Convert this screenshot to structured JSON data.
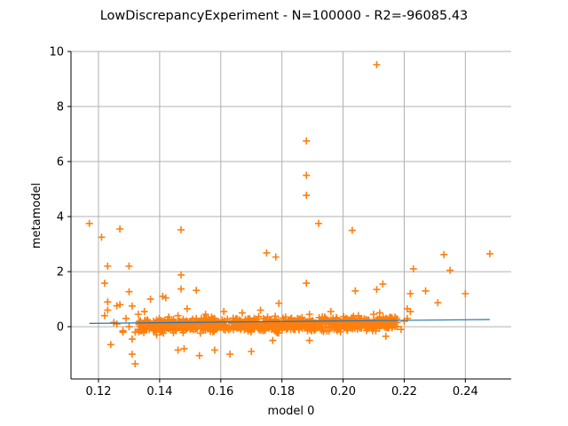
{
  "chart_data": {
    "type": "scatter",
    "title": "LowDiscrepancyExperiment - N=100000 - R2=-96085.43",
    "xlabel": "model 0",
    "ylabel": "metamodel",
    "xlim": [
      0.111,
      0.255
    ],
    "ylim": [
      -1.9,
      10.0
    ],
    "xticks": [
      0.12,
      0.14,
      0.16,
      0.18,
      0.2,
      0.22,
      0.24
    ],
    "xtick_labels": [
      "0.12",
      "0.14",
      "0.16",
      "0.18",
      "0.20",
      "0.22",
      "0.24"
    ],
    "yticks": [
      0,
      2,
      4,
      6,
      8,
      10
    ],
    "ytick_labels": [
      "0",
      "2",
      "4",
      "6",
      "8",
      "10"
    ],
    "grid": true,
    "colors": {
      "line": "#1f77b4",
      "points": "#ff7f0e",
      "grid": "#b0b0b0"
    },
    "series": [
      {
        "type": "line",
        "x": [
          0.117,
          0.248
        ],
        "y": [
          0.12,
          0.26
        ]
      },
      {
        "type": "scatter",
        "marker": "plus",
        "x": [
          0.117,
          0.121,
          0.122,
          0.123,
          0.124,
          0.126,
          0.127,
          0.13,
          0.13,
          0.131,
          0.132,
          0.137,
          0.141,
          0.142,
          0.146,
          0.147,
          0.147,
          0.147,
          0.152,
          0.175,
          0.178,
          0.188,
          0.188,
          0.188,
          0.188,
          0.192,
          0.203,
          0.204,
          0.211,
          0.211,
          0.213,
          0.222,
          0.223,
          0.227,
          0.231,
          0.233,
          0.235,
          0.24,
          0.248,
          0.212,
          0.214,
          0.219,
          0.221,
          0.122,
          0.123,
          0.125,
          0.127,
          0.128,
          0.129,
          0.131,
          0.133,
          0.134,
          0.135,
          0.138,
          0.139,
          0.143,
          0.145,
          0.149,
          0.151,
          0.155,
          0.158,
          0.161,
          0.164,
          0.167,
          0.171,
          0.173,
          0.176,
          0.179,
          0.183,
          0.186,
          0.189,
          0.191,
          0.194,
          0.196,
          0.199,
          0.201,
          0.205,
          0.208,
          0.21,
          0.217,
          0.22,
          0.222,
          0.123,
          0.128,
          0.13,
          0.131,
          0.146,
          0.148,
          0.153,
          0.158,
          0.163,
          0.17,
          0.177,
          0.189,
          0.214,
          0.126,
          0.132,
          0.136,
          0.14,
          0.144,
          0.15,
          0.154,
          0.157,
          0.16,
          0.166,
          0.169,
          0.174,
          0.18,
          0.185,
          0.193,
          0.198,
          0.202,
          0.206,
          0.209,
          0.216,
          0.221
        ],
        "y": [
          3.75,
          3.25,
          1.58,
          2.2,
          -0.65,
          0.76,
          3.55,
          2.2,
          1.27,
          -1.0,
          -1.35,
          1.0,
          1.1,
          1.05,
          0.4,
          1.88,
          1.37,
          3.52,
          1.32,
          2.68,
          2.53,
          6.75,
          5.5,
          4.77,
          1.58,
          3.75,
          3.5,
          1.3,
          1.35,
          9.52,
          1.55,
          1.2,
          2.1,
          1.3,
          0.87,
          2.62,
          2.05,
          1.2,
          2.65,
          0.5,
          -0.35,
          -0.1,
          0.65,
          0.4,
          0.9,
          0.15,
          0.8,
          -0.2,
          0.3,
          0.75,
          0.45,
          -0.1,
          0.55,
          0.2,
          -0.3,
          0.35,
          0.1,
          0.65,
          0.0,
          0.45,
          0.3,
          0.55,
          0.2,
          0.5,
          0.15,
          0.6,
          0.25,
          0.85,
          0.3,
          0.1,
          0.45,
          0.05,
          0.35,
          0.55,
          0.2,
          0.3,
          0.4,
          0.15,
          0.45,
          0.35,
          0.2,
          0.55,
          0.6,
          -0.15,
          0.0,
          -0.45,
          -0.85,
          -0.8,
          -1.05,
          -0.85,
          -1.0,
          -0.9,
          -0.5,
          -0.5,
          0.3,
          0.1,
          -0.2,
          0.25,
          0.0,
          0.2,
          -0.1,
          0.15,
          0.35,
          0.05,
          0.25,
          0.1,
          0.3,
          0.0,
          0.2,
          0.1,
          0.25,
          0.05,
          0.2,
          0.15,
          0.1,
          0.3
        ]
      }
    ],
    "dense_band": {
      "x_range": [
        0.133,
        0.218
      ],
      "y_center_start": 0.02,
      "y_center_end": 0.12,
      "spread": 0.22
    }
  }
}
